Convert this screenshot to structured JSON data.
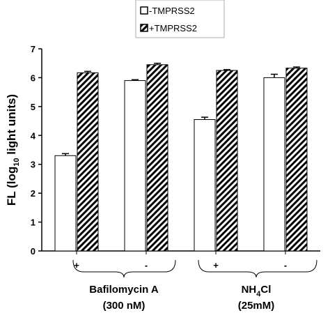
{
  "chart_data": {
    "type": "bar",
    "y_label_parts": [
      "FL (log",
      "10",
      " light units)"
    ],
    "categories": [
      "+",
      "-",
      "+",
      "-"
    ],
    "series": [
      {
        "name": "-TMPRSS2",
        "color": "#ffffff",
        "hatch": false,
        "values": [
          3.3,
          5.9,
          4.55,
          6.0
        ],
        "errors": [
          0.07,
          0.03,
          0.08,
          0.12
        ]
      },
      {
        "name": "+TMPRSS2",
        "color": "#ffffff",
        "hatch": true,
        "values": [
          6.17,
          6.45,
          6.25,
          6.33
        ],
        "errors": [
          0.05,
          0.05,
          0.03,
          0.04
        ]
      }
    ],
    "groups": [
      {
        "label_parts": [
          "Bafilomycin A"
        ],
        "detail": "(300 nM)"
      },
      {
        "label_parts": [
          "NH",
          "4",
          "Cl"
        ],
        "detail": "(25mM)"
      }
    ],
    "ylim": [
      0,
      7
    ],
    "yticks": [
      0,
      1,
      2,
      3,
      4,
      5,
      6,
      7
    ]
  }
}
